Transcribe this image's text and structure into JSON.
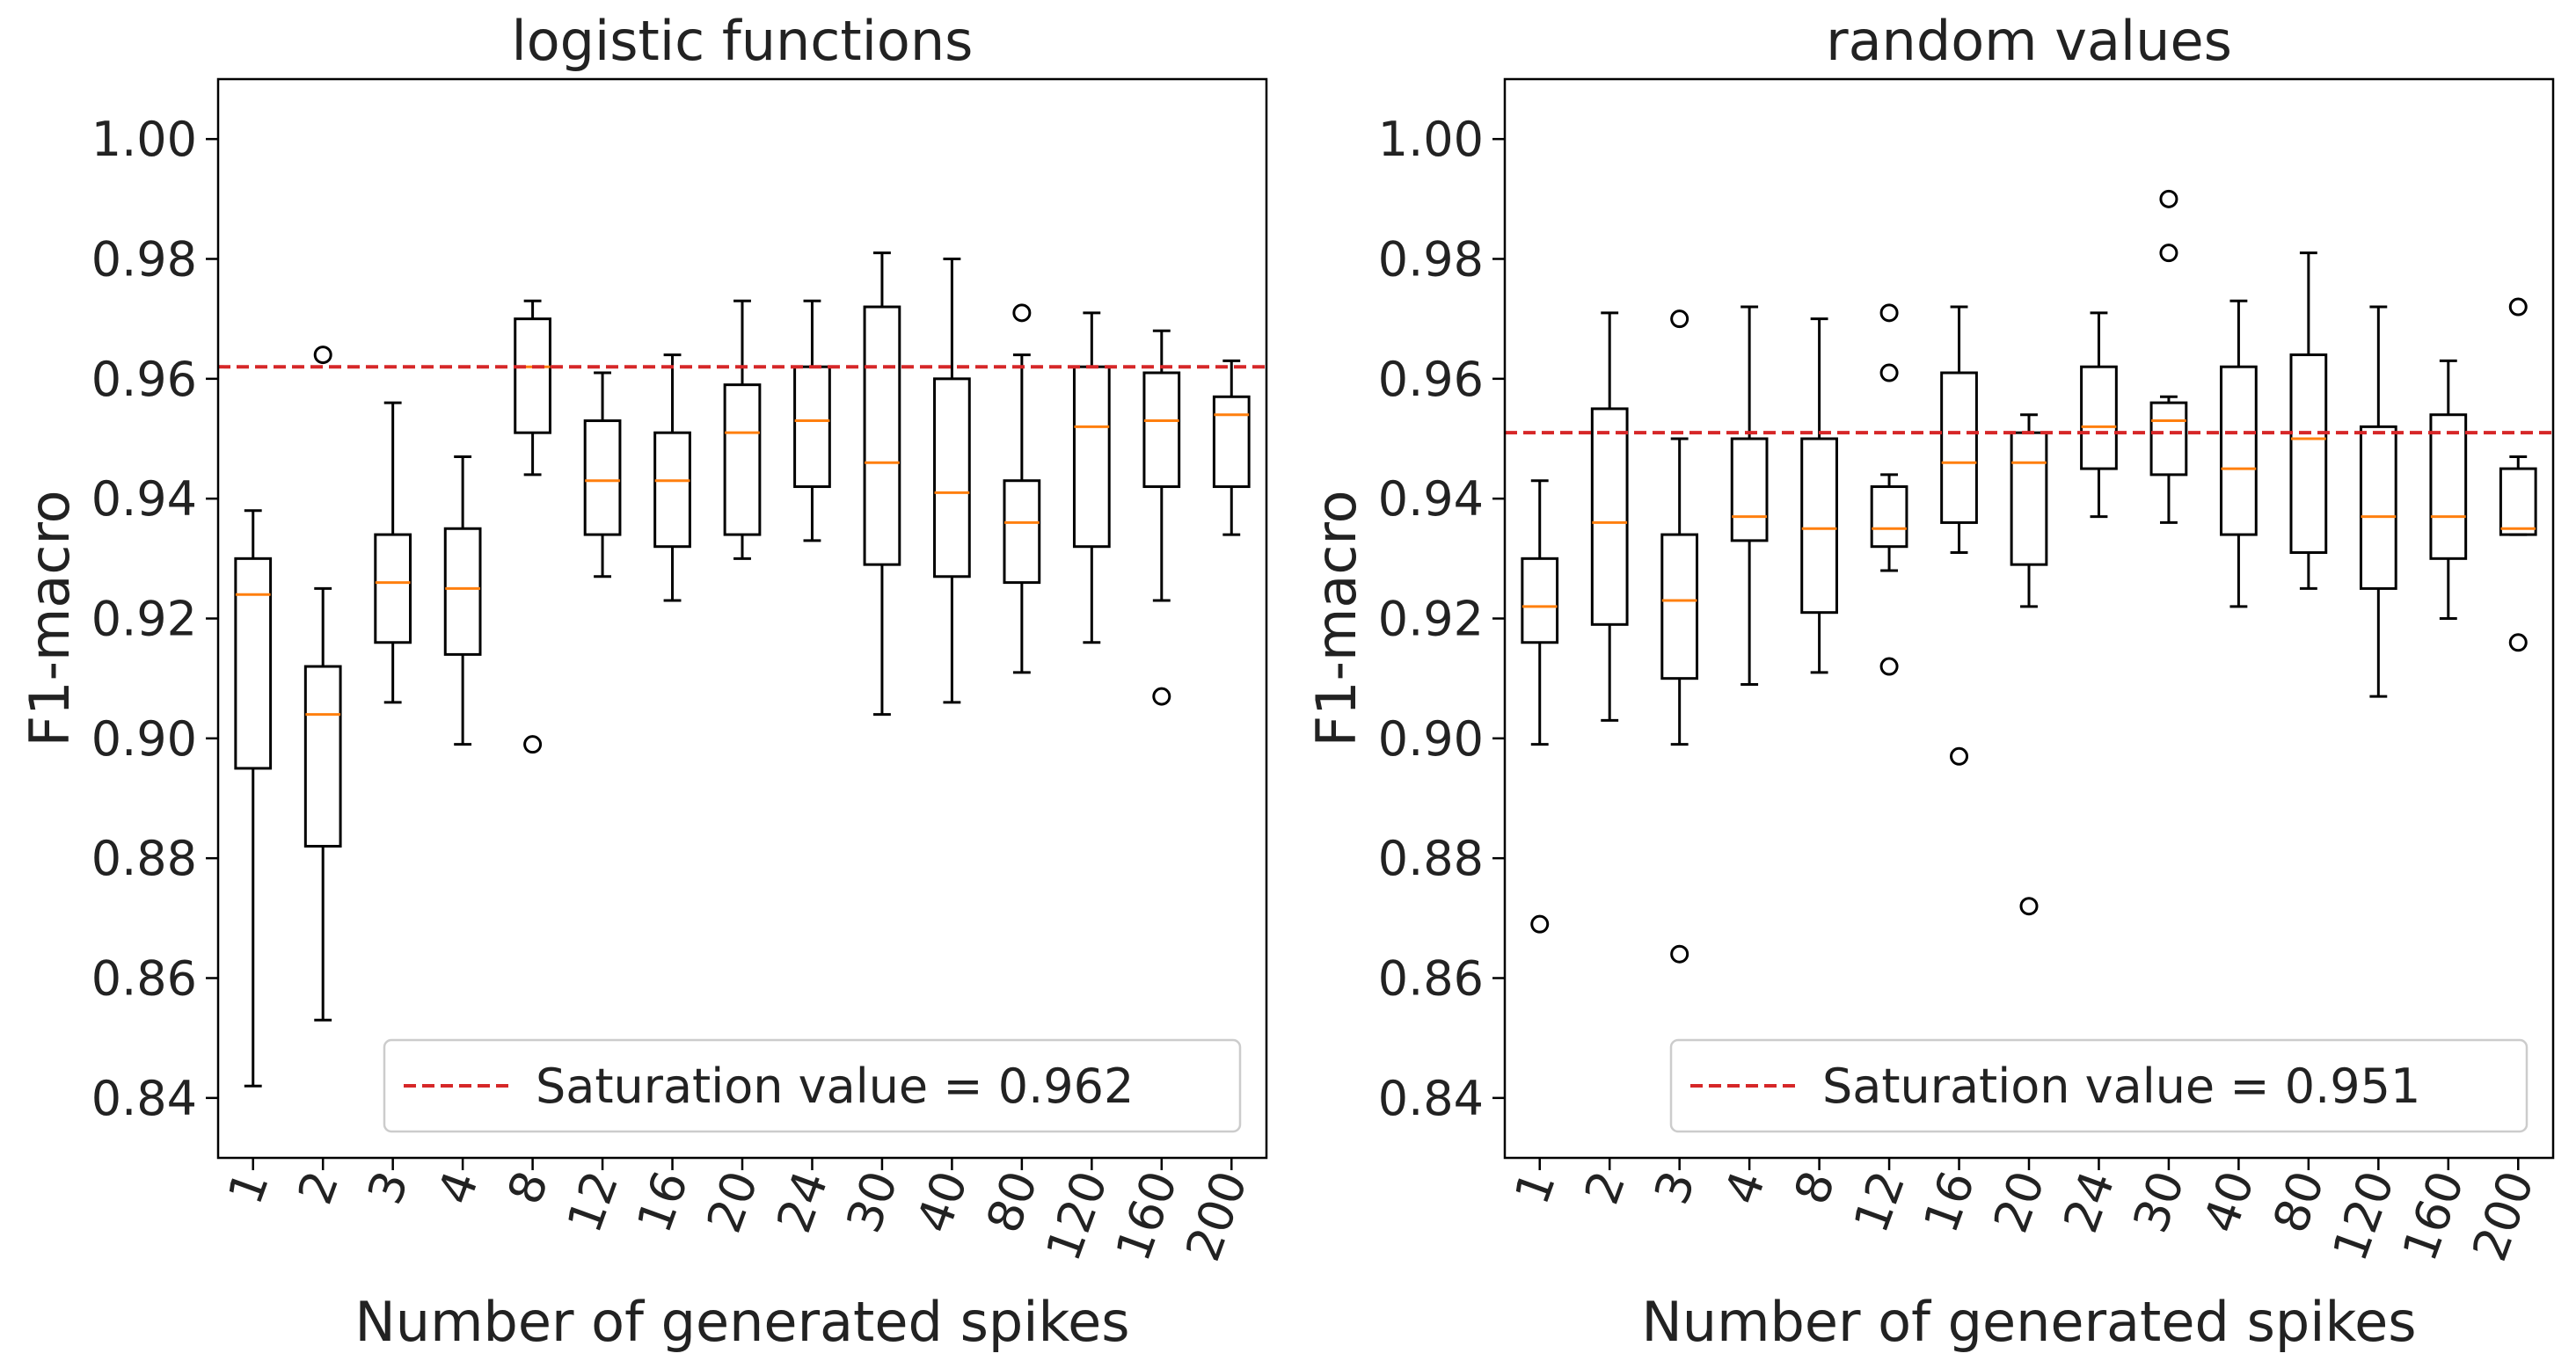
{
  "chart_data": [
    {
      "type": "box",
      "title": "logistic functions",
      "x_label": "Number of generated spikes",
      "y_label": "F1-macro",
      "categories": [
        "1",
        "2",
        "3",
        "4",
        "8",
        "12",
        "16",
        "20",
        "24",
        "30",
        "40",
        "80",
        "120",
        "160",
        "200"
      ],
      "whislo": [
        0.842,
        0.853,
        0.906,
        0.899,
        0.944,
        0.927,
        0.923,
        0.93,
        0.933,
        0.904,
        0.906,
        0.911,
        0.916,
        0.923,
        0.934
      ],
      "q1": [
        0.895,
        0.882,
        0.916,
        0.914,
        0.951,
        0.934,
        0.932,
        0.934,
        0.942,
        0.929,
        0.927,
        0.926,
        0.932,
        0.942,
        0.942
      ],
      "med": [
        0.924,
        0.904,
        0.926,
        0.925,
        0.962,
        0.943,
        0.943,
        0.951,
        0.953,
        0.946,
        0.941,
        0.936,
        0.952,
        0.953,
        0.954
      ],
      "q3": [
        0.93,
        0.912,
        0.934,
        0.935,
        0.97,
        0.953,
        0.951,
        0.959,
        0.962,
        0.972,
        0.96,
        0.943,
        0.962,
        0.961,
        0.957
      ],
      "whishi": [
        0.938,
        0.925,
        0.956,
        0.947,
        0.973,
        0.961,
        0.964,
        0.973,
        0.973,
        0.981,
        0.98,
        0.964,
        0.971,
        0.968,
        0.963
      ],
      "fliers": [
        [],
        [
          0.964
        ],
        [],
        [],
        [
          0.899
        ],
        [],
        [],
        [],
        [],
        [],
        [],
        [
          0.971
        ],
        [],
        [
          0.907
        ],
        []
      ],
      "box_color": "#000000",
      "median_color": "#ff7f0e",
      "saturation": {
        "label": "Saturation value = 0.962",
        "value": 0.962,
        "color": "#d62728"
      },
      "legend": "lower right",
      "ylim": [
        0.83,
        1.01
      ],
      "yticks": [
        0.84,
        0.86,
        0.88,
        {
          "value": 0.9,
          "label": "0.90"
        },
        0.92,
        0.94,
        0.96,
        0.98,
        {
          "value": 1.0,
          "label": "1.00"
        }
      ]
    },
    {
      "type": "box",
      "title": "random values",
      "x_label": "Number of generated spikes",
      "y_label": "F1-macro",
      "categories": [
        "1",
        "2",
        "3",
        "4",
        "8",
        "12",
        "16",
        "20",
        "24",
        "30",
        "40",
        "80",
        "120",
        "160",
        "200"
      ],
      "whislo": [
        0.899,
        0.903,
        0.899,
        0.909,
        0.911,
        0.928,
        0.931,
        0.922,
        0.937,
        0.936,
        0.922,
        0.925,
        0.907,
        0.92,
        0.934
      ],
      "q1": [
        0.916,
        0.919,
        0.91,
        0.933,
        0.921,
        0.932,
        0.936,
        0.929,
        0.945,
        0.944,
        0.934,
        0.931,
        0.925,
        0.93,
        0.934
      ],
      "med": [
        0.922,
        0.936,
        0.923,
        0.937,
        0.935,
        0.935,
        0.946,
        0.946,
        0.952,
        0.953,
        0.945,
        0.95,
        0.937,
        0.937,
        0.935
      ],
      "q3": [
        0.93,
        0.955,
        0.934,
        0.95,
        0.95,
        0.942,
        0.961,
        0.951,
        0.962,
        0.956,
        0.962,
        0.964,
        0.952,
        0.954,
        0.945
      ],
      "whishi": [
        0.943,
        0.971,
        0.95,
        0.972,
        0.97,
        0.944,
        0.972,
        0.954,
        0.971,
        0.957,
        0.973,
        0.981,
        0.972,
        0.963,
        0.947
      ],
      "fliers": [
        [
          0.869
        ],
        [],
        [
          0.97,
          0.864
        ],
        [],
        [],
        [
          0.971,
          0.961,
          0.912
        ],
        [
          0.897
        ],
        [
          0.872
        ],
        [],
        [
          0.99,
          0.981
        ],
        [],
        [],
        [],
        [],
        [
          0.972,
          0.916
        ]
      ],
      "box_color": "#000000",
      "median_color": "#ff7f0e",
      "saturation": {
        "label": "Saturation value = 0.951",
        "value": 0.951,
        "color": "#d62728"
      },
      "legend": "lower right",
      "ylim": [
        0.83,
        1.01
      ],
      "yticks": [
        0.84,
        0.86,
        0.88,
        {
          "value": 0.9,
          "label": "0.90"
        },
        0.92,
        0.94,
        0.96,
        0.98,
        {
          "value": 1.0,
          "label": "1.00"
        }
      ]
    }
  ]
}
